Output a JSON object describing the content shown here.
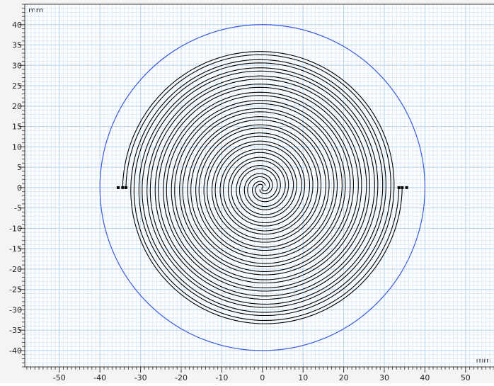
{
  "chart_data": {
    "type": "geometry",
    "x_unit": "mm",
    "y_unit": "mm",
    "xlim": [
      -58.5,
      57
    ],
    "ylim": [
      -44,
      45
    ],
    "xticks": [
      -50,
      -40,
      -30,
      -20,
      -10,
      0,
      10,
      20,
      30,
      40,
      50
    ],
    "yticks": [
      -40,
      -35,
      -30,
      -25,
      -20,
      -15,
      -10,
      -5,
      0,
      5,
      10,
      15,
      20,
      25,
      30,
      35,
      40
    ],
    "grid": true,
    "circle_radius": 40,
    "circle_color": "#3a5ae0",
    "spiral_outer_radius": 34,
    "spiral_color": "#000000"
  }
}
